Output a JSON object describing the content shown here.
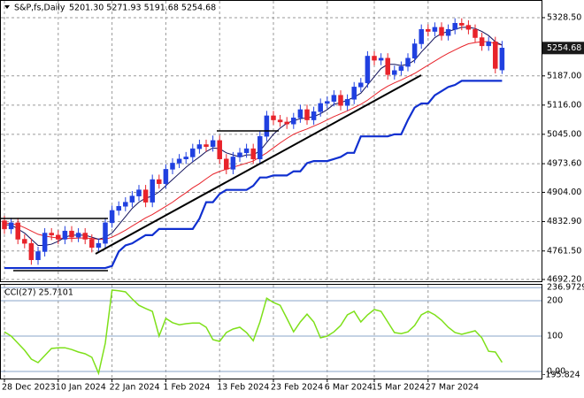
{
  "chart_data": [
    {
      "type": "candlestick",
      "title": "S&P,fs,Daily",
      "header_ohlc": "5201.30 5271.93 5191.68 5254.68",
      "last_price_label": "5254.68",
      "up_color": "#2040e0",
      "down_color": "#e8232a",
      "categories": [
        "28 Dec 2023",
        null,
        null,
        null,
        null,
        null,
        null,
        null,
        "10 Jan 2024",
        null,
        null,
        null,
        null,
        null,
        null,
        null,
        "22 Jan 2024",
        null,
        null,
        null,
        null,
        null,
        null,
        null,
        "1 Feb 2024",
        null,
        null,
        null,
        null,
        null,
        null,
        null,
        "13 Feb 2024",
        null,
        null,
        null,
        null,
        null,
        null,
        null,
        "23 Feb 2024",
        null,
        null,
        null,
        null,
        null,
        null,
        null,
        "6 Mar 2024",
        null,
        null,
        null,
        null,
        null,
        null,
        "15 Mar 2024",
        null,
        null,
        null,
        null,
        null,
        null,
        null,
        "27 Mar 2024",
        null,
        null,
        null,
        null,
        null,
        null,
        null,
        null,
        null,
        null,
        null
      ],
      "open": [
        4835,
        4815,
        4830,
        4790,
        4780,
        4740,
        4760,
        4805,
        4800,
        4790,
        4810,
        4795,
        4805,
        4790,
        4770,
        4780,
        4830,
        4860,
        4870,
        4880,
        4895,
        4910,
        4880,
        4935,
        4925,
        4960,
        4975,
        4985,
        4990,
        5010,
        5020,
        5015,
        5030,
        4985,
        4960,
        4990,
        5000,
        5010,
        4985,
        5040,
        5090,
        5080,
        5075,
        5070,
        5085,
        5105,
        5080,
        5100,
        5120,
        5125,
        5140,
        5115,
        5130,
        5160,
        5170,
        5235,
        5225,
        5230,
        5190,
        5200,
        5210,
        5230,
        5265,
        5300,
        5295,
        5305,
        5285,
        5300,
        5315,
        5310,
        5300,
        5280,
        5260,
        5270,
        5201.3
      ],
      "high": [
        4847,
        4842,
        4842,
        4802,
        4792,
        4772,
        4817,
        4817,
        4812,
        4822,
        4822,
        4817,
        4817,
        4802,
        4792,
        4842,
        4872,
        4882,
        4892,
        4907,
        4922,
        4922,
        4947,
        4947,
        4972,
        4987,
        4997,
        5002,
        5022,
        5032,
        5032,
        5042,
        5042,
        4997,
        5002,
        5012,
        5022,
        5022,
        5052,
        5102,
        5102,
        5092,
        5087,
        5097,
        5117,
        5117,
        5112,
        5132,
        5137,
        5152,
        5152,
        5142,
        5172,
        5182,
        5247,
        5247,
        5242,
        5242,
        5212,
        5222,
        5242,
        5277,
        5312,
        5312,
        5317,
        5317,
        5312,
        5327,
        5327,
        5322,
        5312,
        5292,
        5282,
        5282,
        5271.93
      ],
      "low": [
        4803,
        4803,
        4778,
        4768,
        4728,
        4728,
        4748,
        4788,
        4778,
        4778,
        4783,
        4783,
        4778,
        4758,
        4758,
        4768,
        4818,
        4848,
        4858,
        4868,
        4883,
        4868,
        4868,
        4913,
        4913,
        4948,
        4963,
        4973,
        4978,
        4998,
        5003,
        5003,
        4973,
        4948,
        4948,
        4978,
        4988,
        4973,
        4973,
        5028,
        5068,
        5063,
        5058,
        5058,
        5073,
        5068,
        5068,
        5088,
        5108,
        5113,
        5103,
        5103,
        5118,
        5148,
        5158,
        5213,
        5213,
        5178,
        5178,
        5188,
        5198,
        5218,
        5253,
        5283,
        5283,
        5273,
        5273,
        5288,
        5298,
        5288,
        5268,
        5248,
        5248,
        5193,
        5191.68
      ],
      "close": [
        4815,
        4830,
        4790,
        4780,
        4740,
        4760,
        4805,
        4800,
        4790,
        4810,
        4795,
        4805,
        4790,
        4770,
        4780,
        4830,
        4860,
        4870,
        4880,
        4895,
        4910,
        4880,
        4935,
        4925,
        4960,
        4975,
        4985,
        4990,
        5010,
        5020,
        5015,
        5030,
        4985,
        4960,
        4990,
        5000,
        5010,
        4985,
        5040,
        5090,
        5080,
        5075,
        5070,
        5085,
        5105,
        5080,
        5100,
        5120,
        5125,
        5140,
        5115,
        5130,
        5160,
        5170,
        5235,
        5225,
        5230,
        5190,
        5200,
        5210,
        5230,
        5265,
        5300,
        5295,
        5305,
        5285,
        5300,
        5315,
        5310,
        5300,
        5280,
        5260,
        5270,
        5205,
        5254.68
      ],
      "series": [
        {
          "color": "#e8232a",
          "width": 1,
          "values": [
            4830,
            4828,
            4825,
            4818,
            4810,
            4802,
            4798,
            4795,
            4793,
            4792,
            4792,
            4793,
            4793,
            4792,
            4790,
            4790,
            4795,
            4803,
            4812,
            4822,
            4832,
            4842,
            4850,
            4860,
            4870,
            4880,
            4892,
            4903,
            4915,
            4925,
            4937,
            4948,
            4955,
            4960,
            4965,
            4970,
            4975,
            4980,
            4990,
            5000,
            5012,
            5024,
            5035,
            5045,
            5052,
            5058,
            5065,
            5072,
            5080,
            5088,
            5095,
            5102,
            5110,
            5118,
            5128,
            5140,
            5152,
            5162,
            5170,
            5177,
            5185,
            5193,
            5203,
            5213,
            5223,
            5233,
            5242,
            5250,
            5258,
            5265,
            5268,
            5270,
            5270,
            5265,
            5262
          ]
        },
        {
          "color": "#10105a",
          "width": 1,
          "values": [
            4825,
            4825,
            4815,
            4805,
            4790,
            4775,
            4775,
            4778,
            4785,
            4795,
            4800,
            4800,
            4800,
            4795,
            4790,
            4795,
            4805,
            4825,
            4845,
            4865,
            4880,
            4890,
            4895,
            4905,
            4920,
            4935,
            4950,
            4965,
            4978,
            4990,
            5003,
            5012,
            5010,
            5000,
            4995,
            4990,
            4995,
            4995,
            5005,
            5025,
            5045,
            5060,
            5072,
            5078,
            5083,
            5085,
            5088,
            5095,
            5105,
            5118,
            5122,
            5128,
            5135,
            5145,
            5165,
            5185,
            5205,
            5215,
            5215,
            5212,
            5215,
            5225,
            5245,
            5262,
            5280,
            5290,
            5295,
            5300,
            5305,
            5305,
            5302,
            5295,
            5285,
            5270,
            5262
          ]
        },
        {
          "color": "#1030d0",
          "width": 2.2,
          "values": [
            4720,
            4720,
            4720,
            4720,
            4720,
            4720,
            4720,
            4720,
            4720,
            4720,
            4720,
            4720,
            4720,
            4720,
            4720,
            4720,
            4725,
            4760,
            4775,
            4780,
            4790,
            4800,
            4800,
            4815,
            4815,
            4815,
            4815,
            4815,
            4815,
            4840,
            4880,
            4880,
            4900,
            4910,
            4910,
            4910,
            4910,
            4920,
            4940,
            4940,
            4945,
            4945,
            4945,
            4955,
            4955,
            4975,
            4980,
            4980,
            4980,
            4985,
            4990,
            5000,
            5000,
            5040,
            5040,
            5040,
            5040,
            5040,
            5045,
            5045,
            5080,
            5110,
            5120,
            5120,
            5140,
            5150,
            5160,
            5165,
            5175,
            5175,
            5175,
            5175,
            5175,
            5175,
            5175
          ]
        }
      ],
      "ylim": [
        4687.9,
        5371.4
      ],
      "yticks": [
        {
          "value": 5328.5,
          "label": "5328.50"
        },
        {
          "value": 5187,
          "label": "5187.00"
        },
        {
          "value": 5116,
          "label": "5116.00"
        },
        {
          "value": 5045,
          "label": "5045.00"
        },
        {
          "value": 4973.6,
          "label": "4973.60"
        },
        {
          "value": 4904,
          "label": "4904.00"
        },
        {
          "value": 4832.9,
          "label": "4832.90"
        },
        {
          "value": 4761.5,
          "label": "4761.50"
        },
        {
          "value": 4692.2,
          "label": "4692.20"
        }
      ],
      "grid": true
    },
    {
      "type": "line",
      "title": "CCI(27) 25.7101",
      "color": "#7ee01a",
      "values": [
        112,
        100,
        80,
        60,
        35,
        25,
        45,
        65,
        67,
        67,
        62,
        55,
        50,
        40,
        -5,
        80,
        230,
        228,
        225,
        205,
        187,
        178,
        170,
        100,
        150,
        138,
        132,
        135,
        137,
        137,
        125,
        90,
        85,
        110,
        120,
        125,
        110,
        87,
        140,
        207,
        195,
        187,
        150,
        112,
        140,
        162,
        140,
        95,
        100,
        112,
        130,
        160,
        170,
        140,
        160,
        175,
        170,
        140,
        110,
        107,
        112,
        130,
        160,
        170,
        160,
        145,
        125,
        110,
        105,
        110,
        115,
        95,
        57,
        55,
        25.7101
      ],
      "ylim": [
        -20,
        245
      ],
      "yticks": [
        236.9729,
        200,
        100,
        {
          "value": 0,
          "label": "0.00"
        }
      ],
      "scale_min_label": "-195.824"
    }
  ]
}
